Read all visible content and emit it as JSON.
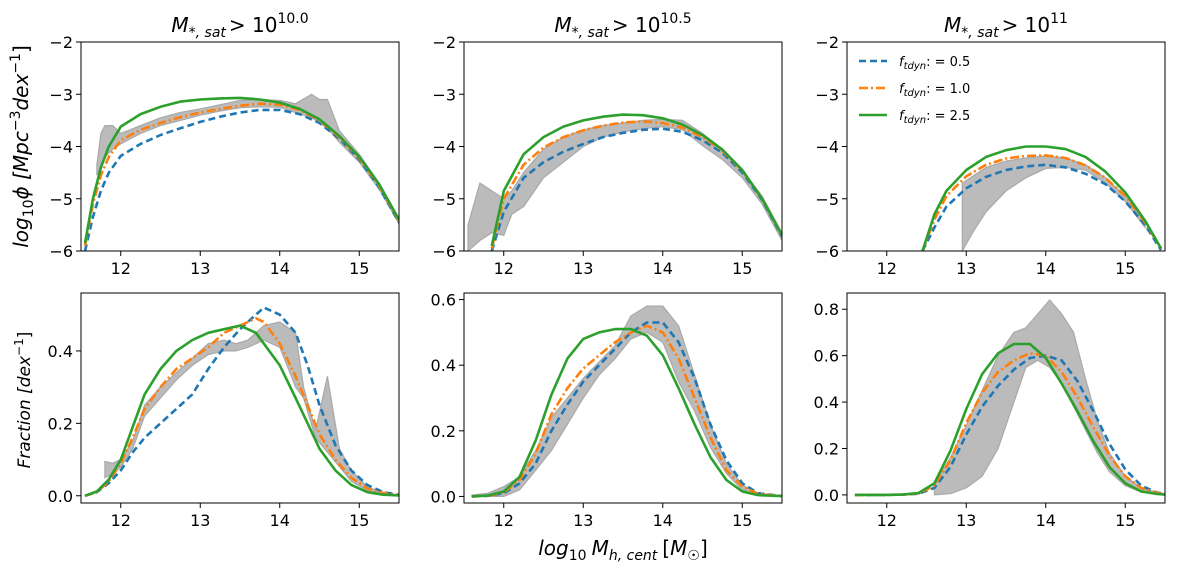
{
  "colors": {
    "f05": "#1f77b4",
    "f10": "#ff7f0e",
    "f25": "#2ca02c",
    "band": "#bbbbbb",
    "band_edge": "#a9a9a9"
  },
  "legend": {
    "entries": [
      {
        "label": "f_tdyn: = 0.5",
        "color": "#1f77b4",
        "style": "dashed"
      },
      {
        "label": "f_tdyn: = 1.0",
        "color": "#ff7f0e",
        "style": "dashdot"
      },
      {
        "label": "f_tdyn: = 2.5",
        "color": "#2ca02c",
        "style": "solid"
      }
    ]
  },
  "chart_data": [
    {
      "type": "line",
      "panel": "top-1",
      "title": "M*,sat > 10^10.0",
      "title_main": "M",
      "title_sub": "*, sat",
      "title_exp": "10.0",
      "ylabel": "log10 φ [Mpc^-3 dex^-1]",
      "xlim": [
        11.5,
        15.5
      ],
      "ylim": [
        -6,
        -2
      ],
      "xticks": [
        12,
        13,
        14,
        15
      ],
      "yticks": [
        -6,
        -5,
        -4,
        -3,
        -2
      ],
      "xtick_labels": [
        "12",
        "13",
        "14",
        "15"
      ],
      "ytick_labels": [
        "−6",
        "−5",
        "−4",
        "−3",
        "−2"
      ],
      "x": [
        11.55,
        11.65,
        11.75,
        11.85,
        12.0,
        12.25,
        12.5,
        12.75,
        13.0,
        13.25,
        13.5,
        13.75,
        14.0,
        14.25,
        14.5,
        14.75,
        15.0,
        15.25,
        15.5
      ],
      "series": [
        {
          "name": "f_tdyn: = 0.5",
          "values": [
            -6.0,
            -5.35,
            -4.85,
            -4.5,
            -4.18,
            -3.95,
            -3.78,
            -3.65,
            -3.53,
            -3.43,
            -3.35,
            -3.3,
            -3.3,
            -3.38,
            -3.55,
            -3.85,
            -4.25,
            -4.78,
            -5.45
          ]
        },
        {
          "name": "f_tdyn: = 1.0",
          "values": [
            -5.9,
            -5.1,
            -4.55,
            -4.2,
            -3.88,
            -3.68,
            -3.55,
            -3.44,
            -3.35,
            -3.28,
            -3.22,
            -3.18,
            -3.2,
            -3.3,
            -3.5,
            -3.82,
            -4.22,
            -4.75,
            -5.42
          ]
        },
        {
          "name": "f_tdyn: = 2.5",
          "values": [
            -5.85,
            -5.0,
            -4.4,
            -4.0,
            -3.62,
            -3.38,
            -3.24,
            -3.14,
            -3.1,
            -3.08,
            -3.07,
            -3.1,
            -3.16,
            -3.28,
            -3.48,
            -3.8,
            -4.2,
            -4.72,
            -5.4
          ]
        }
      ],
      "band": {
        "x": [
          11.7,
          11.75,
          11.8,
          11.9,
          12.0,
          12.25,
          12.5,
          12.75,
          13.0,
          13.25,
          13.5,
          13.75,
          14.0,
          14.2,
          14.4,
          14.5,
          14.6,
          14.75,
          15.0,
          15.25,
          15.5
        ],
        "upper": [
          -4.35,
          -3.75,
          -3.6,
          -3.6,
          -3.75,
          -3.6,
          -3.45,
          -3.35,
          -3.28,
          -3.2,
          -3.12,
          -3.1,
          -3.12,
          -3.18,
          -3.0,
          -3.1,
          -3.1,
          -3.7,
          -4.15,
          -4.7,
          -5.38
        ],
        "lower": [
          -4.55,
          -4.35,
          -4.2,
          -4.05,
          -3.95,
          -3.75,
          -3.6,
          -3.5,
          -3.4,
          -3.32,
          -3.26,
          -3.24,
          -3.25,
          -3.35,
          -3.45,
          -3.55,
          -3.65,
          -3.92,
          -4.3,
          -4.82,
          -5.48
        ]
      }
    },
    {
      "type": "line",
      "panel": "top-2",
      "title": "M*,sat > 10^10.5",
      "title_main": "M",
      "title_sub": "*, sat",
      "title_exp": "10.5",
      "xlim": [
        11.5,
        15.5
      ],
      "ylim": [
        -6,
        -2
      ],
      "xticks": [
        12,
        13,
        14,
        15
      ],
      "yticks": [
        -6,
        -5,
        -4,
        -3,
        -2
      ],
      "xtick_labels": [
        "12",
        "13",
        "14",
        "15"
      ],
      "ytick_labels": [
        "−6",
        "−5",
        "−4",
        "−3",
        "−2"
      ],
      "x": [
        11.85,
        12.0,
        12.25,
        12.5,
        12.75,
        13.0,
        13.25,
        13.5,
        13.75,
        14.0,
        14.25,
        14.5,
        14.75,
        15.0,
        15.25,
        15.5
      ],
      "series": [
        {
          "name": "f_tdyn: = 0.5",
          "values": [
            -6.0,
            -5.25,
            -4.6,
            -4.3,
            -4.1,
            -3.95,
            -3.82,
            -3.74,
            -3.68,
            -3.66,
            -3.72,
            -3.88,
            -4.12,
            -4.5,
            -5.02,
            -5.72
          ]
        },
        {
          "name": "f_tdyn: = 1.0",
          "values": [
            -5.95,
            -5.0,
            -4.35,
            -4.02,
            -3.82,
            -3.69,
            -3.6,
            -3.54,
            -3.52,
            -3.55,
            -3.64,
            -3.82,
            -4.08,
            -4.46,
            -5.0,
            -5.7
          ]
        },
        {
          "name": "f_tdyn: = 2.5",
          "values": [
            -5.9,
            -4.85,
            -4.15,
            -3.82,
            -3.62,
            -3.5,
            -3.43,
            -3.39,
            -3.4,
            -3.46,
            -3.58,
            -3.78,
            -4.06,
            -4.45,
            -5.0,
            -5.7
          ]
        }
      ],
      "band": {
        "x": [
          11.55,
          11.7,
          11.85,
          12.0,
          12.1,
          12.25,
          12.5,
          12.75,
          13.0,
          13.25,
          13.5,
          13.75,
          14.0,
          14.25,
          14.5,
          14.75,
          15.0,
          15.25,
          15.5
        ],
        "upper": [
          -5.5,
          -4.7,
          -4.85,
          -5.0,
          -4.85,
          -4.5,
          -4.05,
          -3.82,
          -3.68,
          -3.6,
          -3.55,
          -3.5,
          -3.48,
          -3.5,
          -3.75,
          -4.05,
          -4.45,
          -4.95,
          -5.65
        ],
        "lower": [
          -6.0,
          -5.8,
          -5.65,
          -5.7,
          -5.3,
          -5.15,
          -4.6,
          -4.3,
          -4.0,
          -3.82,
          -3.72,
          -3.66,
          -3.62,
          -3.68,
          -3.98,
          -4.25,
          -4.6,
          -5.1,
          -5.8
        ]
      }
    },
    {
      "type": "line",
      "panel": "top-3",
      "title": "M*,sat > 10^11",
      "title_main": "M",
      "title_sub": "*, sat",
      "title_exp": "11",
      "legend_position": "top-left",
      "xlim": [
        11.5,
        15.5
      ],
      "ylim": [
        -6,
        -2
      ],
      "xticks": [
        12,
        13,
        14,
        15
      ],
      "yticks": [
        -6,
        -5,
        -4,
        -3,
        -2
      ],
      "xtick_labels": [
        "12",
        "13",
        "14",
        "15"
      ],
      "ytick_labels": [
        "−6",
        "−5",
        "−4",
        "−3",
        "−2"
      ],
      "x": [
        12.45,
        12.6,
        12.75,
        13.0,
        13.25,
        13.5,
        13.75,
        14.0,
        14.25,
        14.5,
        14.75,
        15.0,
        15.25,
        15.45
      ],
      "series": [
        {
          "name": "f_tdyn: = 0.5",
          "values": [
            -6.0,
            -5.55,
            -5.15,
            -4.8,
            -4.58,
            -4.45,
            -4.38,
            -4.35,
            -4.4,
            -4.52,
            -4.72,
            -5.05,
            -5.5,
            -5.98
          ]
        },
        {
          "name": "f_tdyn: = 1.0",
          "values": [
            -6.0,
            -5.4,
            -4.95,
            -4.57,
            -4.35,
            -4.23,
            -4.18,
            -4.17,
            -4.22,
            -4.36,
            -4.6,
            -4.95,
            -5.45,
            -5.95
          ]
        },
        {
          "name": "f_tdyn: = 2.5",
          "values": [
            -6.0,
            -5.3,
            -4.85,
            -4.45,
            -4.2,
            -4.07,
            -4.0,
            -4.0,
            -4.05,
            -4.2,
            -4.48,
            -4.88,
            -5.42,
            -5.95
          ]
        }
      ],
      "band": {
        "x": [
          12.95,
          13.1,
          13.25,
          13.5,
          13.75,
          14.0,
          14.25,
          14.5,
          14.75,
          15.0,
          15.25
        ],
        "upper": [
          -4.7,
          -4.55,
          -4.4,
          -4.28,
          -4.22,
          -4.18,
          -4.22,
          -4.35,
          -4.6,
          -4.95,
          -5.45
        ],
        "lower": [
          -6.0,
          -5.6,
          -5.25,
          -4.85,
          -4.6,
          -4.42,
          -4.4,
          -4.45,
          -4.7,
          -5.05,
          -5.55
        ]
      }
    },
    {
      "type": "line",
      "panel": "bottom-1",
      "ylabel": "Fraction [dex^-1]",
      "xlim": [
        11.5,
        15.5
      ],
      "ylim": [
        -0.02,
        0.56
      ],
      "xticks": [
        12,
        13,
        14,
        15
      ],
      "yticks": [
        0.0,
        0.2,
        0.4
      ],
      "xtick_labels": [
        "12",
        "13",
        "14",
        "15"
      ],
      "ytick_labels": [
        "0.0",
        "0.2",
        "0.4"
      ],
      "x": [
        11.55,
        11.7,
        11.85,
        12.0,
        12.15,
        12.3,
        12.5,
        12.7,
        12.9,
        13.1,
        13.3,
        13.5,
        13.7,
        13.8,
        14.0,
        14.2,
        14.35,
        14.5,
        14.7,
        14.9,
        15.1,
        15.3,
        15.5
      ],
      "series": [
        {
          "name": "f_tdyn: = 0.5",
          "values": [
            0.0,
            0.01,
            0.035,
            0.07,
            0.12,
            0.16,
            0.2,
            0.24,
            0.28,
            0.35,
            0.41,
            0.46,
            0.5,
            0.52,
            0.5,
            0.45,
            0.36,
            0.25,
            0.14,
            0.07,
            0.03,
            0.01,
            0.003
          ]
        },
        {
          "name": "f_tdyn: = 1.0",
          "values": [
            0.0,
            0.01,
            0.04,
            0.09,
            0.16,
            0.24,
            0.3,
            0.35,
            0.38,
            0.41,
            0.45,
            0.47,
            0.49,
            0.48,
            0.42,
            0.33,
            0.25,
            0.17,
            0.1,
            0.05,
            0.02,
            0.008,
            0.002
          ]
        },
        {
          "name": "f_tdyn: = 2.5",
          "values": [
            0.0,
            0.012,
            0.045,
            0.1,
            0.19,
            0.28,
            0.35,
            0.4,
            0.43,
            0.45,
            0.46,
            0.47,
            0.45,
            0.42,
            0.36,
            0.27,
            0.2,
            0.13,
            0.07,
            0.03,
            0.01,
            0.003,
            0.001
          ]
        }
      ],
      "band": {
        "x": [
          11.8,
          11.9,
          12.0,
          12.15,
          12.3,
          12.5,
          12.7,
          12.9,
          13.1,
          13.3,
          13.45,
          13.6,
          13.8,
          14.0,
          14.2,
          14.3,
          14.45,
          14.6,
          14.75,
          14.9,
          15.1,
          15.3,
          15.5
        ],
        "upper": [
          0.095,
          0.09,
          0.1,
          0.15,
          0.25,
          0.3,
          0.34,
          0.38,
          0.42,
          0.43,
          0.42,
          0.43,
          0.47,
          0.48,
          0.45,
          0.3,
          0.18,
          0.33,
          0.13,
          0.07,
          0.025,
          0.008,
          0.002
        ],
        "lower": [
          0.05,
          0.06,
          0.08,
          0.13,
          0.22,
          0.27,
          0.32,
          0.36,
          0.39,
          0.4,
          0.4,
          0.41,
          0.43,
          0.41,
          0.3,
          0.27,
          0.16,
          0.12,
          0.08,
          0.04,
          0.015,
          0.005,
          0.001
        ]
      }
    },
    {
      "type": "line",
      "panel": "bottom-2",
      "xlabel": "log10 M_h,cent [M☉]",
      "xlim": [
        11.5,
        15.5
      ],
      "ylim": [
        -0.02,
        0.62
      ],
      "xticks": [
        12,
        13,
        14,
        15
      ],
      "yticks": [
        0.0,
        0.2,
        0.4,
        0.6
      ],
      "xtick_labels": [
        "12",
        "13",
        "14",
        "15"
      ],
      "ytick_labels": [
        "0.0",
        "0.2",
        "0.4",
        "0.6"
      ],
      "x": [
        11.6,
        11.8,
        12.0,
        12.2,
        12.4,
        12.6,
        12.8,
        13.0,
        13.2,
        13.4,
        13.6,
        13.8,
        14.0,
        14.2,
        14.4,
        14.6,
        14.8,
        15.0,
        15.2,
        15.5
      ],
      "series": [
        {
          "name": "f_tdyn: = 0.5",
          "values": [
            0.0,
            0.002,
            0.01,
            0.04,
            0.1,
            0.2,
            0.28,
            0.35,
            0.4,
            0.45,
            0.5,
            0.53,
            0.53,
            0.47,
            0.36,
            0.22,
            0.11,
            0.04,
            0.01,
            0.001
          ]
        },
        {
          "name": "f_tdyn: = 1.0",
          "values": [
            0.0,
            0.002,
            0.012,
            0.05,
            0.13,
            0.25,
            0.33,
            0.39,
            0.43,
            0.47,
            0.5,
            0.52,
            0.5,
            0.42,
            0.3,
            0.18,
            0.08,
            0.03,
            0.008,
            0.001
          ]
        },
        {
          "name": "f_tdyn: = 2.5",
          "values": [
            0.0,
            0.003,
            0.015,
            0.06,
            0.17,
            0.31,
            0.42,
            0.48,
            0.5,
            0.51,
            0.51,
            0.49,
            0.43,
            0.33,
            0.22,
            0.12,
            0.05,
            0.015,
            0.004,
            0.001
          ]
        }
      ],
      "band": {
        "x": [
          11.6,
          11.8,
          12.0,
          12.2,
          12.4,
          12.6,
          12.8,
          13.0,
          13.2,
          13.4,
          13.6,
          13.8,
          14.0,
          14.2,
          14.4,
          14.6,
          14.8,
          15.0,
          15.2,
          15.5
        ],
        "upper": [
          0.004,
          0.01,
          0.03,
          0.06,
          0.14,
          0.24,
          0.3,
          0.36,
          0.41,
          0.46,
          0.55,
          0.58,
          0.58,
          0.52,
          0.37,
          0.22,
          0.1,
          0.035,
          0.01,
          0.001
        ],
        "lower": [
          0.0,
          0.0,
          0.0,
          0.02,
          0.08,
          0.14,
          0.22,
          0.3,
          0.37,
          0.42,
          0.48,
          0.5,
          0.47,
          0.35,
          0.26,
          0.15,
          0.07,
          0.02,
          0.005,
          0.0
        ]
      }
    },
    {
      "type": "line",
      "panel": "bottom-3",
      "xlim": [
        11.5,
        15.5
      ],
      "ylim": [
        -0.035,
        0.87
      ],
      "xticks": [
        12,
        13,
        14,
        15
      ],
      "yticks": [
        0.0,
        0.2,
        0.4,
        0.6,
        0.8
      ],
      "xtick_labels": [
        "12",
        "13",
        "14",
        "15"
      ],
      "ytick_labels": [
        "0.0",
        "0.2",
        "0.4",
        "0.6",
        "0.8"
      ],
      "x": [
        11.6,
        11.8,
        12.0,
        12.2,
        12.4,
        12.6,
        12.8,
        13.0,
        13.2,
        13.4,
        13.6,
        13.8,
        14.0,
        14.2,
        14.4,
        14.6,
        14.8,
        15.0,
        15.2,
        15.4,
        15.5
      ],
      "series": [
        {
          "name": "f_tdyn: = 0.5",
          "values": [
            0.0,
            0.0,
            0.0,
            0.001,
            0.005,
            0.03,
            0.12,
            0.26,
            0.38,
            0.47,
            0.54,
            0.59,
            0.6,
            0.58,
            0.49,
            0.36,
            0.22,
            0.11,
            0.04,
            0.01,
            0.005
          ]
        },
        {
          "name": "f_tdyn: = 1.0",
          "values": [
            0.0,
            0.0,
            0.0,
            0.001,
            0.006,
            0.04,
            0.15,
            0.31,
            0.44,
            0.53,
            0.58,
            0.61,
            0.6,
            0.53,
            0.42,
            0.29,
            0.17,
            0.08,
            0.03,
            0.008,
            0.003
          ]
        },
        {
          "name": "f_tdyn: = 2.5",
          "values": [
            0.0,
            0.0,
            0.0,
            0.001,
            0.008,
            0.05,
            0.19,
            0.37,
            0.52,
            0.61,
            0.65,
            0.65,
            0.59,
            0.48,
            0.36,
            0.23,
            0.12,
            0.05,
            0.015,
            0.004,
            0.001
          ]
        }
      ],
      "band": {
        "x": [
          12.6,
          12.8,
          13.0,
          13.2,
          13.4,
          13.6,
          13.75,
          13.9,
          14.05,
          14.2,
          14.35,
          14.5,
          14.65,
          14.8,
          15.0,
          15.2,
          15.4,
          15.5
        ],
        "upper": [
          0.05,
          0.16,
          0.3,
          0.45,
          0.6,
          0.7,
          0.72,
          0.78,
          0.84,
          0.78,
          0.7,
          0.5,
          0.32,
          0.18,
          0.08,
          0.03,
          0.01,
          0.005
        ],
        "lower": [
          0.0,
          0.005,
          0.03,
          0.08,
          0.2,
          0.4,
          0.55,
          0.58,
          0.55,
          0.48,
          0.38,
          0.28,
          0.18,
          0.1,
          0.04,
          0.012,
          0.003,
          0.001
        ]
      }
    }
  ]
}
